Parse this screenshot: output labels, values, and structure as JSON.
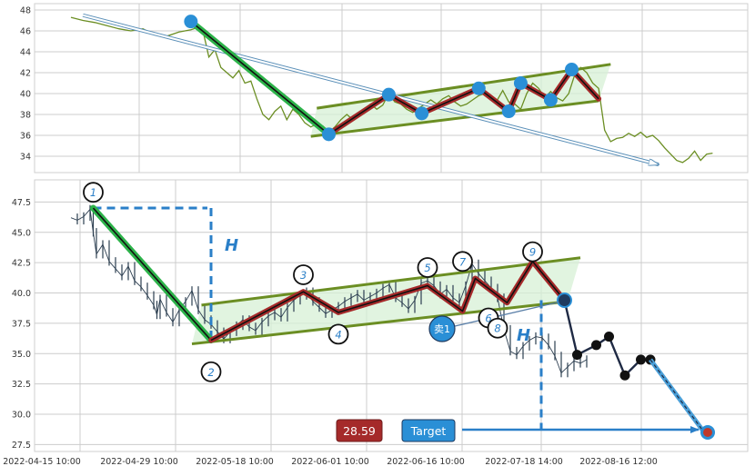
{
  "chart_data": [
    {
      "type": "line",
      "panel": "top",
      "yticks": [
        34,
        36,
        38,
        40,
        42,
        44,
        46,
        48
      ],
      "ylim": [
        32.5,
        48.5
      ],
      "xlim": [
        0,
        108
      ],
      "grid": true,
      "price_series": [
        [
          0,
          47.3
        ],
        [
          2,
          47.0
        ],
        [
          4,
          46.8
        ],
        [
          6,
          46.5
        ],
        [
          8,
          46.2
        ],
        [
          10,
          46.0
        ],
        [
          12,
          46.2
        ],
        [
          14,
          45.6
        ],
        [
          16,
          45.5
        ],
        [
          18,
          45.9
        ],
        [
          20,
          46.1
        ],
        [
          21,
          46.3
        ],
        [
          22,
          46.0
        ],
        [
          22.5,
          44.8
        ],
        [
          23,
          43.5
        ],
        [
          24,
          44.2
        ],
        [
          25,
          42.5
        ],
        [
          26,
          42.0
        ],
        [
          27,
          41.5
        ],
        [
          28,
          42.2
        ],
        [
          29,
          41.0
        ],
        [
          30,
          41.2
        ],
        [
          31,
          39.5
        ],
        [
          32,
          38.0
        ],
        [
          33,
          37.5
        ],
        [
          34,
          38.3
        ],
        [
          35,
          38.8
        ],
        [
          36,
          37.5
        ],
        [
          37,
          38.5
        ],
        [
          38,
          38.0
        ],
        [
          39,
          37.2
        ],
        [
          40,
          36.8
        ],
        [
          41,
          37.1
        ],
        [
          42,
          36.9
        ],
        [
          43,
          36.3
        ],
        [
          44,
          36.8
        ],
        [
          45,
          37.5
        ],
        [
          46,
          38.0
        ],
        [
          47,
          37.5
        ],
        [
          48,
          38.2
        ],
        [
          49,
          38.6
        ],
        [
          50,
          39.0
        ],
        [
          51,
          38.5
        ],
        [
          52,
          38.9
        ],
        [
          53,
          40.0
        ],
        [
          54,
          39.2
        ],
        [
          55,
          39.0
        ],
        [
          56,
          38.5
        ],
        [
          57,
          38.2
        ],
        [
          58,
          38.6
        ],
        [
          59,
          39.0
        ],
        [
          60,
          39.4
        ],
        [
          61,
          39.0
        ],
        [
          62,
          39.5
        ],
        [
          63,
          39.8
        ],
        [
          64,
          39.2
        ],
        [
          65,
          38.8
        ],
        [
          66,
          39.0
        ],
        [
          67,
          39.4
        ],
        [
          68,
          39.8
        ],
        [
          69,
          40.0
        ],
        [
          70,
          39.6
        ],
        [
          71,
          39.3
        ],
        [
          72,
          40.3
        ],
        [
          73,
          39.2
        ],
        [
          74,
          39.0
        ],
        [
          75,
          38.5
        ],
        [
          76,
          40.0
        ],
        [
          77,
          41.0
        ],
        [
          78,
          40.5
        ],
        [
          79,
          39.6
        ],
        [
          80,
          40.2
        ],
        [
          81,
          39.6
        ],
        [
          82,
          39.3
        ],
        [
          83,
          40.0
        ],
        [
          84,
          41.8
        ],
        [
          85,
          42.5
        ],
        [
          86,
          42.0
        ],
        [
          87,
          41.0
        ],
        [
          88,
          40.5
        ],
        [
          88.5,
          38.5
        ],
        [
          89,
          36.5
        ],
        [
          90,
          35.4
        ],
        [
          91,
          35.7
        ],
        [
          92,
          35.8
        ],
        [
          93,
          36.2
        ],
        [
          94,
          35.9
        ],
        [
          95,
          36.3
        ],
        [
          96,
          35.8
        ],
        [
          97,
          36.0
        ],
        [
          98,
          35.5
        ],
        [
          99,
          34.8
        ],
        [
          100,
          34.2
        ],
        [
          101,
          33.6
        ],
        [
          102,
          33.4
        ],
        [
          103,
          33.8
        ],
        [
          104,
          34.5
        ],
        [
          105,
          33.6
        ],
        [
          106,
          34.2
        ],
        [
          107,
          34.3
        ]
      ],
      "pattern_points": [
        [
          20,
          46.9
        ],
        [
          43,
          36.1
        ],
        [
          53,
          39.9
        ],
        [
          58.5,
          38.1
        ],
        [
          68,
          40.5
        ],
        [
          73,
          38.3
        ],
        [
          75,
          41.0
        ],
        [
          80,
          39.4
        ],
        [
          83.5,
          42.3
        ],
        [
          88,
          39.5
        ]
      ],
      "channel_upper": [
        [
          41,
          38.6
        ],
        [
          90,
          42.8
        ]
      ],
      "channel_lower": [
        [
          40,
          35.9
        ],
        [
          88,
          39.3
        ]
      ],
      "trend_arrow": [
        [
          2,
          47.5
        ],
        [
          98,
          33.2
        ]
      ]
    },
    {
      "type": "line",
      "panel": "bottom",
      "yticks": [
        27.5,
        30.0,
        32.5,
        35.0,
        37.5,
        40.0,
        42.5,
        45.0,
        47.5
      ],
      "ylim": [
        27.0,
        49.0
      ],
      "xlim": [
        0,
        100
      ],
      "grid": true,
      "xtick_labels": [
        "2022-04-15 10:00",
        "2022-04-29 10:00",
        "2022-05-18 10:00",
        "2022-06-01 10:00",
        "2022-06-16 10:00",
        "2022-07-18 14:00",
        "2022-08-16 12:00"
      ],
      "price_series": [
        [
          0,
          46.2
        ],
        [
          1,
          46.0
        ],
        [
          2,
          46.3
        ],
        [
          3,
          46.9
        ],
        [
          3.5,
          45.0
        ],
        [
          4,
          43.2
        ],
        [
          5,
          44.0
        ],
        [
          6,
          42.6
        ],
        [
          7,
          42.0
        ],
        [
          8,
          41.4
        ],
        [
          9,
          42.2
        ],
        [
          10,
          41.0
        ],
        [
          11,
          40.5
        ],
        [
          12,
          39.8
        ],
        [
          13,
          39.0
        ],
        [
          13.5,
          38.2
        ],
        [
          14,
          39.5
        ],
        [
          15,
          38.4
        ],
        [
          16,
          37.6
        ],
        [
          17,
          38.6
        ],
        [
          18,
          39.3
        ],
        [
          19,
          40.2
        ],
        [
          20,
          38.6
        ],
        [
          21,
          37.8
        ],
        [
          22,
          37.4
        ],
        [
          23,
          36.8
        ],
        [
          24,
          36.2
        ],
        [
          25,
          36.8
        ],
        [
          26,
          37.3
        ],
        [
          27,
          37.8
        ],
        [
          28,
          37.2
        ],
        [
          29,
          36.9
        ],
        [
          30,
          37.6
        ],
        [
          31,
          38.1
        ],
        [
          32,
          38.4
        ],
        [
          33,
          38.0
        ],
        [
          34,
          38.8
        ],
        [
          35,
          39.4
        ],
        [
          36,
          39.8
        ],
        [
          37,
          40.1
        ],
        [
          38,
          39.3
        ],
        [
          39,
          38.8
        ],
        [
          40,
          38.3
        ],
        [
          41,
          38.6
        ],
        [
          42,
          38.9
        ],
        [
          43,
          39.3
        ],
        [
          44,
          39.6
        ],
        [
          45,
          39.9
        ],
        [
          46,
          39.4
        ],
        [
          47,
          39.7
        ],
        [
          48,
          40.0
        ],
        [
          49,
          40.4
        ],
        [
          50,
          40.7
        ],
        [
          51,
          39.6
        ],
        [
          52,
          39.2
        ],
        [
          53,
          38.7
        ],
        [
          54,
          39.4
        ],
        [
          55,
          40.8
        ],
        [
          56,
          41.0
        ],
        [
          57,
          40.6
        ],
        [
          58,
          39.9
        ],
        [
          59,
          40.3
        ],
        [
          60,
          39.6
        ],
        [
          61,
          39.2
        ],
        [
          62,
          40.6
        ],
        [
          63,
          42.4
        ],
        [
          64,
          41.6
        ],
        [
          65,
          41.0
        ],
        [
          66,
          40.4
        ],
        [
          67,
          39.6
        ],
        [
          68,
          37.0
        ],
        [
          69,
          35.2
        ],
        [
          70,
          34.9
        ],
        [
          71,
          35.6
        ],
        [
          72,
          36.1
        ],
        [
          73,
          36.4
        ],
        [
          74,
          36.3
        ],
        [
          75,
          35.7
        ],
        [
          76,
          34.8
        ],
        [
          77,
          33.4
        ],
        [
          78,
          33.9
        ],
        [
          79,
          34.4
        ],
        [
          80,
          34.2
        ],
        [
          81,
          34.5
        ]
      ],
      "pattern_points": [
        [
          3.5,
          47.0
        ],
        [
          22,
          36.1
        ],
        [
          36.5,
          40.1
        ],
        [
          42,
          38.4
        ],
        [
          56,
          40.6
        ],
        [
          61.5,
          38.5
        ],
        [
          63.5,
          41.2
        ],
        [
          68.5,
          39.2
        ],
        [
          72.5,
          42.6
        ],
        [
          77.5,
          39.4
        ]
      ],
      "channel_upper": [
        [
          20.5,
          39.0
        ],
        [
          80,
          42.9
        ]
      ],
      "channel_lower": [
        [
          19,
          35.8
        ],
        [
          78,
          39.3
        ]
      ],
      "forecast_path": [
        [
          77.5,
          39.4
        ],
        [
          79.5,
          34.9
        ],
        [
          82.5,
          35.7
        ],
        [
          84.5,
          36.4
        ],
        [
          87,
          33.2
        ],
        [
          89.5,
          34.5
        ],
        [
          91,
          34.5
        ]
      ],
      "target_arrow": [
        [
          91,
          34.5
        ],
        [
          100,
          28.5
        ]
      ],
      "target_value": "28.59",
      "target_label": "Target",
      "sell_label": "卖1",
      "h_label": "H",
      "point_labels": [
        "1",
        "2",
        "3",
        "4",
        "5",
        "6",
        "7",
        "8",
        "9"
      ],
      "label_positions": [
        [
          3.5,
          48.3
        ],
        [
          22,
          33.5
        ],
        [
          36.5,
          41.5
        ],
        [
          42,
          36.6
        ],
        [
          56,
          42.1
        ],
        [
          55.2,
          42.1
        ],
        [
          61.5,
          42.6
        ],
        [
          67,
          37.1
        ],
        [
          72.5,
          43.4
        ]
      ]
    }
  ],
  "colors": {
    "price_top": "#6b8e23",
    "price_bottom": "#2c3e50",
    "green_leg": "#2db34a",
    "pattern_red": "#a52a2a",
    "channel": "#6b8e23",
    "channel_fill": "#d7f0d6",
    "point_blue": "#2a8fd6",
    "dashed_blue": "#2a7fc8",
    "target_box": "#2a8fd6",
    "value_box": "#a52a2a",
    "grid": "#cccccc"
  }
}
